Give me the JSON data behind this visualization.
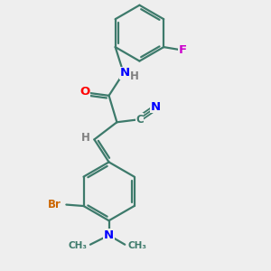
{
  "bg_color": "#eeeeee",
  "bond_color": "#3d7a6b",
  "bond_width": 1.6,
  "atom_colors": {
    "O": "#ff0000",
    "N": "#0000ff",
    "Br": "#cc6600",
    "F": "#cc00cc",
    "C": "#3d7a6b",
    "H": "#808080"
  },
  "font_size": 9.5
}
